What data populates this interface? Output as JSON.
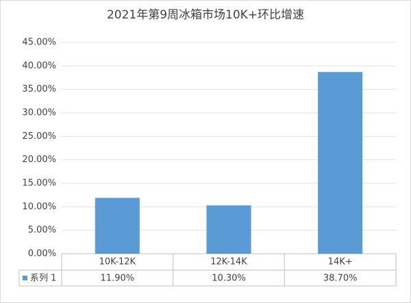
{
  "chart_data": {
    "type": "bar",
    "title": "2021年第9周冰箱市场10K+环比增速",
    "categories": [
      "10K-12K",
      "12K-14K",
      "14K+"
    ],
    "series": [
      {
        "name": "系列 1",
        "color": "#5b9bd5",
        "values": [
          11.9,
          10.3,
          38.7
        ],
        "value_labels": [
          "11.90%",
          "10.30%",
          "38.70%"
        ]
      }
    ],
    "ylim": [
      0,
      45
    ],
    "yticks": [
      {
        "value": 0,
        "label": "0.00%"
      },
      {
        "value": 5,
        "label": "5.00%"
      },
      {
        "value": 10,
        "label": "10.00%"
      },
      {
        "value": 15,
        "label": "15.00%"
      },
      {
        "value": 20,
        "label": "20.00%"
      },
      {
        "value": 25,
        "label": "25.00%"
      },
      {
        "value": 30,
        "label": "30.00%"
      },
      {
        "value": 35,
        "label": "35.00%"
      },
      {
        "value": 40,
        "label": "40.00%"
      },
      {
        "value": 45,
        "label": "45.00%"
      }
    ],
    "grid": true
  }
}
